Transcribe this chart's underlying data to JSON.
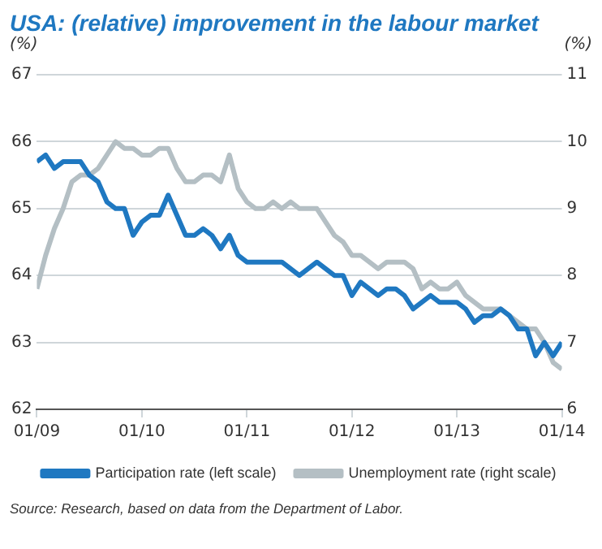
{
  "chart_data": {
    "type": "line",
    "title": "USA: (relative) improvement in the labour market",
    "ylabel": "(%)",
    "y2label": "(%)",
    "x": [
      "2009-01",
      "2009-02",
      "2009-03",
      "2009-04",
      "2009-05",
      "2009-06",
      "2009-07",
      "2009-08",
      "2009-09",
      "2009-10",
      "2009-11",
      "2009-12",
      "2010-01",
      "2010-02",
      "2010-03",
      "2010-04",
      "2010-05",
      "2010-06",
      "2010-07",
      "2010-08",
      "2010-09",
      "2010-10",
      "2010-11",
      "2010-12",
      "2011-01",
      "2011-02",
      "2011-03",
      "2011-04",
      "2011-05",
      "2011-06",
      "2011-07",
      "2011-08",
      "2011-09",
      "2011-10",
      "2011-11",
      "2011-12",
      "2012-01",
      "2012-02",
      "2012-03",
      "2012-04",
      "2012-05",
      "2012-06",
      "2012-07",
      "2012-08",
      "2012-09",
      "2012-10",
      "2012-11",
      "2012-12",
      "2013-01",
      "2013-02",
      "2013-03",
      "2013-04",
      "2013-05",
      "2013-06",
      "2013-07",
      "2013-08",
      "2013-09",
      "2013-10",
      "2013-11",
      "2013-12",
      "2014-01"
    ],
    "series": [
      {
        "name": "Participation rate (left scale)",
        "color": "#1f78c1",
        "values": [
          65.7,
          65.8,
          65.6,
          65.7,
          65.7,
          65.7,
          65.5,
          65.4,
          65.1,
          65.0,
          65.0,
          64.6,
          64.8,
          64.9,
          64.9,
          65.2,
          64.9,
          64.6,
          64.6,
          64.7,
          64.6,
          64.4,
          64.6,
          64.3,
          64.2,
          64.2,
          64.2,
          64.2,
          64.2,
          64.1,
          64.0,
          64.1,
          64.2,
          64.1,
          64.0,
          64.0,
          63.7,
          63.9,
          63.8,
          63.7,
          63.8,
          63.8,
          63.7,
          63.5,
          63.6,
          63.7,
          63.6,
          63.6,
          63.6,
          63.5,
          63.3,
          63.4,
          63.4,
          63.5,
          63.4,
          63.2,
          63.2,
          62.8,
          63.0,
          62.8,
          63.0
        ]
      },
      {
        "name": "Unemployment rate (right scale)",
        "color": "#b4bfc4",
        "axis": "y2",
        "values": [
          7.8,
          8.3,
          8.7,
          9.0,
          9.4,
          9.5,
          9.5,
          9.6,
          9.8,
          10.0,
          9.9,
          9.9,
          9.8,
          9.8,
          9.9,
          9.9,
          9.6,
          9.4,
          9.4,
          9.5,
          9.5,
          9.4,
          9.8,
          9.3,
          9.1,
          9.0,
          9.0,
          9.1,
          9.0,
          9.1,
          9.0,
          9.0,
          9.0,
          8.8,
          8.6,
          8.5,
          8.3,
          8.3,
          8.2,
          8.1,
          8.2,
          8.2,
          8.2,
          8.1,
          7.8,
          7.9,
          7.8,
          7.8,
          7.9,
          7.7,
          7.6,
          7.5,
          7.5,
          7.5,
          7.4,
          7.3,
          7.2,
          7.2,
          7.0,
          6.7,
          6.6
        ]
      }
    ],
    "xlim": [
      "2009-01",
      "2014-01"
    ],
    "xticks": [
      {
        "value": "2009-01",
        "label": "01/09"
      },
      {
        "value": "2010-01",
        "label": "01/10"
      },
      {
        "value": "2011-01",
        "label": "01/11"
      },
      {
        "value": "2012-01",
        "label": "01/12"
      },
      {
        "value": "2013-01",
        "label": "01/13"
      },
      {
        "value": "2014-01",
        "label": "01/14"
      }
    ],
    "ylim": [
      62,
      67
    ],
    "yticks": [
      62,
      63,
      64,
      65,
      66,
      67
    ],
    "y2lim": [
      6,
      11
    ],
    "y2ticks": [
      6,
      7,
      8,
      9,
      10,
      11
    ],
    "grid": "y",
    "legend": "bottom",
    "marker": "none",
    "line_style": "solid",
    "annotations": [
      "Source: Research, based on data from the Department of Labor."
    ]
  }
}
